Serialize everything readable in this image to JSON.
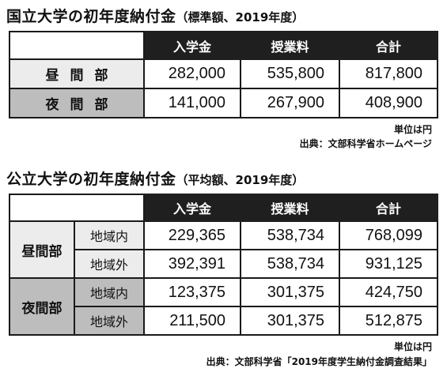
{
  "national": {
    "title": "国立大学の初年度納付金",
    "subtitle": "（標準額、2019年度）",
    "headers": [
      "入学金",
      "授業料",
      "合計"
    ],
    "rows": [
      {
        "label": "昼間部",
        "values": [
          "282,000",
          "535,800",
          "817,800"
        ]
      },
      {
        "label": "夜間部",
        "values": [
          "141,000",
          "267,900",
          "408,900"
        ]
      }
    ],
    "unit": "単位は円",
    "source": "出典：文部科学省ホームページ"
  },
  "public": {
    "title": "公立大学の初年度納付金",
    "subtitle": "（平均額、2019年度）",
    "headers": [
      "入学金",
      "授業料",
      "合計"
    ],
    "groups": [
      {
        "label": "昼間部",
        "rows": [
          {
            "area": "地域内",
            "values": [
              "229,365",
              "538,734",
              "768,099"
            ]
          },
          {
            "area": "地域外",
            "values": [
              "392,391",
              "538,734",
              "931,125"
            ]
          }
        ]
      },
      {
        "label": "夜間部",
        "rows": [
          {
            "area": "地域内",
            "values": [
              "123,375",
              "301,375",
              "424,750"
            ]
          },
          {
            "area": "地域外",
            "values": [
              "211,500",
              "301,375",
              "512,875"
            ]
          }
        ]
      }
    ],
    "unit": "単位は円",
    "source": "出典：文部科学省「2019年度学生納付金調査結果」"
  }
}
